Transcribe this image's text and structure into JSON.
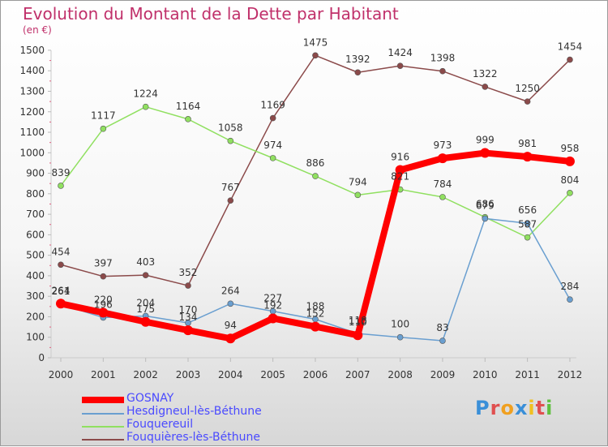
{
  "title": "Evolution du Montant de la Dette par Habitant",
  "subtitle": "(en €)",
  "logo": "Proxiti",
  "chart_data": {
    "type": "line",
    "title": "Evolution du Montant de la Dette par Habitant",
    "ylabel": "(en €)",
    "ylim": [
      0,
      1500
    ],
    "yticks": [
      0,
      100,
      200,
      300,
      400,
      500,
      600,
      700,
      800,
      900,
      1000,
      1100,
      1200,
      1300,
      1400,
      1500
    ],
    "x": [
      "2000",
      "2001",
      "2002",
      "2003",
      "2004",
      "2005",
      "2006",
      "2007",
      "2008",
      "2009",
      "2010",
      "2011",
      "2012"
    ],
    "grid": false,
    "legend": "bottom-left",
    "series": [
      {
        "name": "GOSNAY",
        "color": "#ff0000",
        "values": [
          264,
          220,
          175,
          134,
          94,
          192,
          152,
          110,
          916,
          973,
          999,
          981,
          958
        ]
      },
      {
        "name": "Hesdigneul-lès-Béthune",
        "color": "#6a9fd0",
        "values": [
          261,
          196,
          204,
          170,
          264,
          227,
          188,
          118,
          100,
          83,
          679,
          656,
          284
        ]
      },
      {
        "name": "Fouquereuil",
        "color": "#90e060",
        "values": [
          839,
          1117,
          1224,
          1164,
          1058,
          974,
          886,
          794,
          821,
          784,
          686,
          587,
          804
        ]
      },
      {
        "name": "Fouquières-lès-Béthune",
        "color": "#8b4a4a",
        "values": [
          454,
          397,
          403,
          352,
          767,
          1169,
          1475,
          1392,
          1424,
          1398,
          1322,
          1250,
          1454
        ]
      }
    ]
  }
}
